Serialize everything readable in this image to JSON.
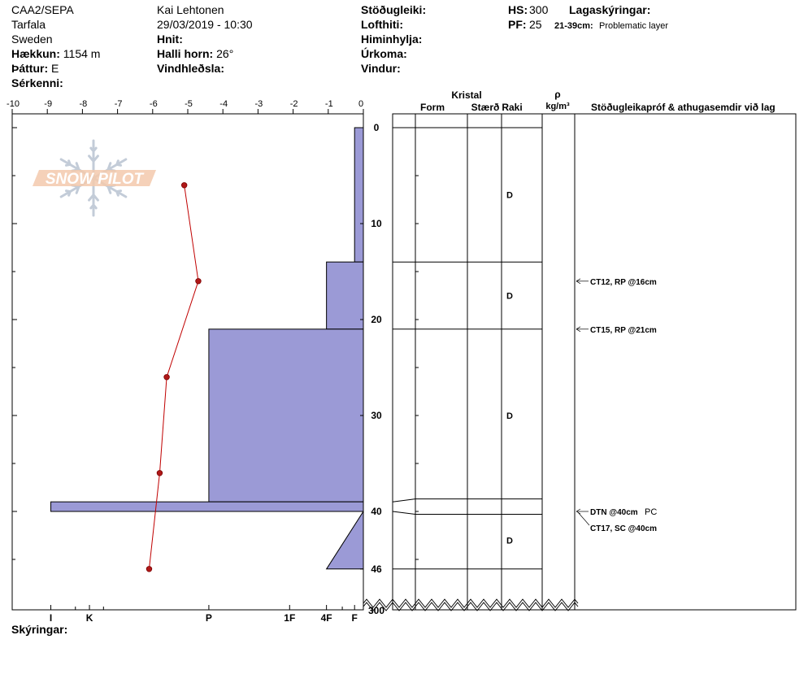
{
  "header": {
    "left": [
      {
        "label": "",
        "value": "CAA2/SEPA"
      },
      {
        "label": "",
        "value": "Tarfala"
      },
      {
        "label": "",
        "value": "Sweden"
      },
      {
        "label": "Hækkun:",
        "value": "1154 m"
      },
      {
        "label": "Þáttur:",
        "value": "E"
      },
      {
        "label": "Sérkenni:",
        "value": ""
      }
    ],
    "middle": [
      {
        "label": "",
        "value": "Kai Lehtonen"
      },
      {
        "label": "",
        "value": "29/03/2019 - 10:30"
      },
      {
        "label": "Hnit:",
        "value": ""
      },
      {
        "label": "Halli horn:",
        "value": "26°"
      },
      {
        "label": "Vindhleðsla:",
        "value": ""
      }
    ],
    "right": [
      {
        "label": "Stöðugleiki:",
        "value": ""
      },
      {
        "label": "Lofthiti:",
        "value": ""
      },
      {
        "label": "Himinhylja:",
        "value": ""
      },
      {
        "label": "Úrkoma:",
        "value": ""
      },
      {
        "label": "Vindur:",
        "value": ""
      }
    ],
    "hs_label": "HS:",
    "hs_value": "300",
    "pf_label": "PF:",
    "pf_value": "25",
    "layers_label": "Lagaskýringar:",
    "layer_note_range": "21-39cm:",
    "layer_note_text": "Problematic layer"
  },
  "logo_text": "SNOW PILOT",
  "footer_label": "Skýringar:",
  "colors": {
    "hardness_fill": "#9b9ad6",
    "temp_line": "#c00000",
    "temp_point": "#b01818"
  },
  "chart_data": {
    "type": "snow-profile",
    "temperature_axis": {
      "ticks": [
        "-10",
        "-9",
        "-8",
        "-7",
        "-6",
        "-5",
        "-4",
        "-3",
        "-2",
        "-1",
        "0"
      ],
      "range": [
        -10,
        0
      ]
    },
    "hardness_axis": {
      "labels": [
        {
          "label": "I",
          "temp": -8.9
        },
        {
          "label": "K",
          "temp": -7.8
        },
        {
          "label": "P",
          "temp": -4.4
        },
        {
          "label": "1F",
          "temp": -2.1
        },
        {
          "label": "4F",
          "temp": -1.05
        },
        {
          "label": "F",
          "temp": -0.25
        }
      ]
    },
    "depth_axis": {
      "ticks": [
        "0",
        "10",
        "20",
        "30",
        "40",
        "46"
      ],
      "tick_values": [
        0,
        10,
        20,
        30,
        40,
        46
      ],
      "range": [
        0,
        46
      ],
      "bottom_label": "300"
    },
    "temperature_profile": [
      {
        "depth": 6,
        "temp": -5.1
      },
      {
        "depth": 16,
        "temp": -4.7
      },
      {
        "depth": 26,
        "temp": -5.6
      },
      {
        "depth": 36,
        "temp": -5.8
      },
      {
        "depth": 46,
        "temp": -6.1
      }
    ],
    "hardness_profile": [
      {
        "top": 0,
        "bottom": 14,
        "temp": -0.25
      },
      {
        "top": 14,
        "bottom": 21,
        "temp": -1.05
      },
      {
        "top": 21,
        "bottom": 39,
        "temp": -4.4
      },
      {
        "top": 39,
        "bottom": 40,
        "temp": -8.9
      }
    ],
    "hardness_taper": {
      "top": 40,
      "bottom": 46,
      "temp_top": 0,
      "temp_bottom": -1.05
    },
    "columns": {
      "kristal": "Kristal",
      "form": "Form",
      "staerd": "Stærð",
      "raki": "Raki",
      "rho": "ρ",
      "rho_unit": "kg/m³",
      "comments": "Stöðugleikapróf & athugasemdir við lag"
    },
    "layers": [
      {
        "top": 0,
        "bottom": 14,
        "wetness": "D"
      },
      {
        "top": 14,
        "bottom": 21,
        "wetness": "D"
      },
      {
        "top": 21,
        "bottom": 39,
        "wetness": "D"
      },
      {
        "top": 40,
        "bottom": 46,
        "wetness": "D"
      }
    ],
    "tests": [
      {
        "depth": 16,
        "text": "CT12, RP @16cm",
        "extra": ""
      },
      {
        "depth": 21,
        "text": "CT15, RP @21cm",
        "extra": ""
      },
      {
        "depth": 40,
        "text": "DTN @40cm",
        "extra": "PC"
      },
      {
        "depth": 40,
        "text": "CT17, SC @40cm",
        "extra": "",
        "offset": true
      }
    ]
  }
}
